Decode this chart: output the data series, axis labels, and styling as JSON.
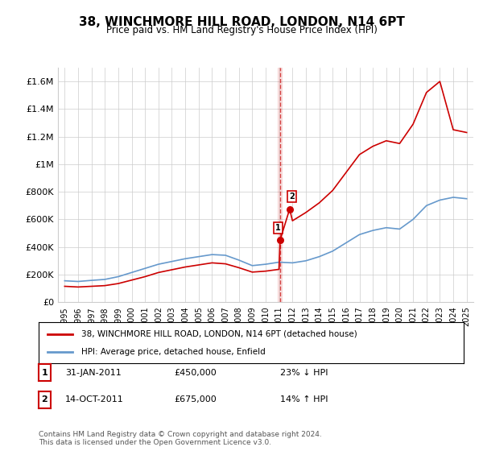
{
  "title": "38, WINCHMORE HILL ROAD, LONDON, N14 6PT",
  "subtitle": "Price paid vs. HM Land Registry's House Price Index (HPI)",
  "legend_line1": "38, WINCHMORE HILL ROAD, LONDON, N14 6PT (detached house)",
  "legend_line2": "HPI: Average price, detached house, Enfield",
  "footnote": "Contains HM Land Registry data © Crown copyright and database right 2024.\nThis data is licensed under the Open Government Licence v3.0.",
  "sale1_label": "1",
  "sale1_date": "31-JAN-2011",
  "sale1_price": "£450,000",
  "sale1_hpi": "23% ↓ HPI",
  "sale2_label": "2",
  "sale2_date": "14-OCT-2011",
  "sale2_price": "£675,000",
  "sale2_hpi": "14% ↑ HPI",
  "vline_x": 2011.08,
  "sale1_x": 2011.08,
  "sale1_y": 450000,
  "sale2_x": 2011.79,
  "sale2_y": 675000,
  "red_color": "#cc0000",
  "blue_color": "#6699cc",
  "background_color": "#ffffff",
  "grid_color": "#cccccc",
  "ylim": [
    0,
    1700000
  ],
  "xlim": [
    1994.5,
    2025.5
  ],
  "yticks": [
    0,
    200000,
    400000,
    600000,
    800000,
    1000000,
    1200000,
    1400000,
    1600000
  ],
  "ytick_labels": [
    "£0",
    "£200K",
    "£400K",
    "£600K",
    "£800K",
    "£1M",
    "£1.2M",
    "£1.4M",
    "£1.6M"
  ],
  "xticks": [
    1995,
    1996,
    1997,
    1998,
    1999,
    2000,
    2001,
    2002,
    2003,
    2004,
    2005,
    2006,
    2007,
    2008,
    2009,
    2010,
    2011,
    2012,
    2013,
    2014,
    2015,
    2016,
    2017,
    2018,
    2019,
    2020,
    2021,
    2022,
    2023,
    2024,
    2025
  ],
  "hpi_x": [
    1995,
    1996,
    1997,
    1998,
    1999,
    2000,
    2001,
    2002,
    2003,
    2004,
    2005,
    2006,
    2007,
    2008,
    2009,
    2010,
    2011,
    2012,
    2013,
    2014,
    2015,
    2016,
    2017,
    2018,
    2019,
    2020,
    2021,
    2022,
    2023,
    2024,
    2025
  ],
  "hpi_y": [
    155000,
    150000,
    158000,
    165000,
    185000,
    215000,
    245000,
    275000,
    295000,
    315000,
    330000,
    345000,
    340000,
    305000,
    265000,
    275000,
    290000,
    285000,
    300000,
    330000,
    370000,
    430000,
    490000,
    520000,
    540000,
    530000,
    600000,
    700000,
    740000,
    760000,
    750000
  ],
  "red_x": [
    1995,
    1996,
    1997,
    1998,
    1999,
    2000,
    2001,
    2002,
    2003,
    2004,
    2005,
    2006,
    2007,
    2008,
    2009,
    2010,
    2011,
    2011.08,
    2011.79,
    2012,
    2013,
    2014,
    2015,
    2016,
    2017,
    2018,
    2019,
    2020,
    2021,
    2022,
    2023,
    2024,
    2025
  ],
  "red_y": [
    115000,
    110000,
    115000,
    120000,
    135000,
    160000,
    185000,
    215000,
    235000,
    255000,
    270000,
    285000,
    278000,
    250000,
    218000,
    225000,
    238000,
    450000,
    675000,
    590000,
    650000,
    720000,
    810000,
    940000,
    1070000,
    1130000,
    1170000,
    1150000,
    1290000,
    1520000,
    1600000,
    1250000,
    1230000
  ]
}
